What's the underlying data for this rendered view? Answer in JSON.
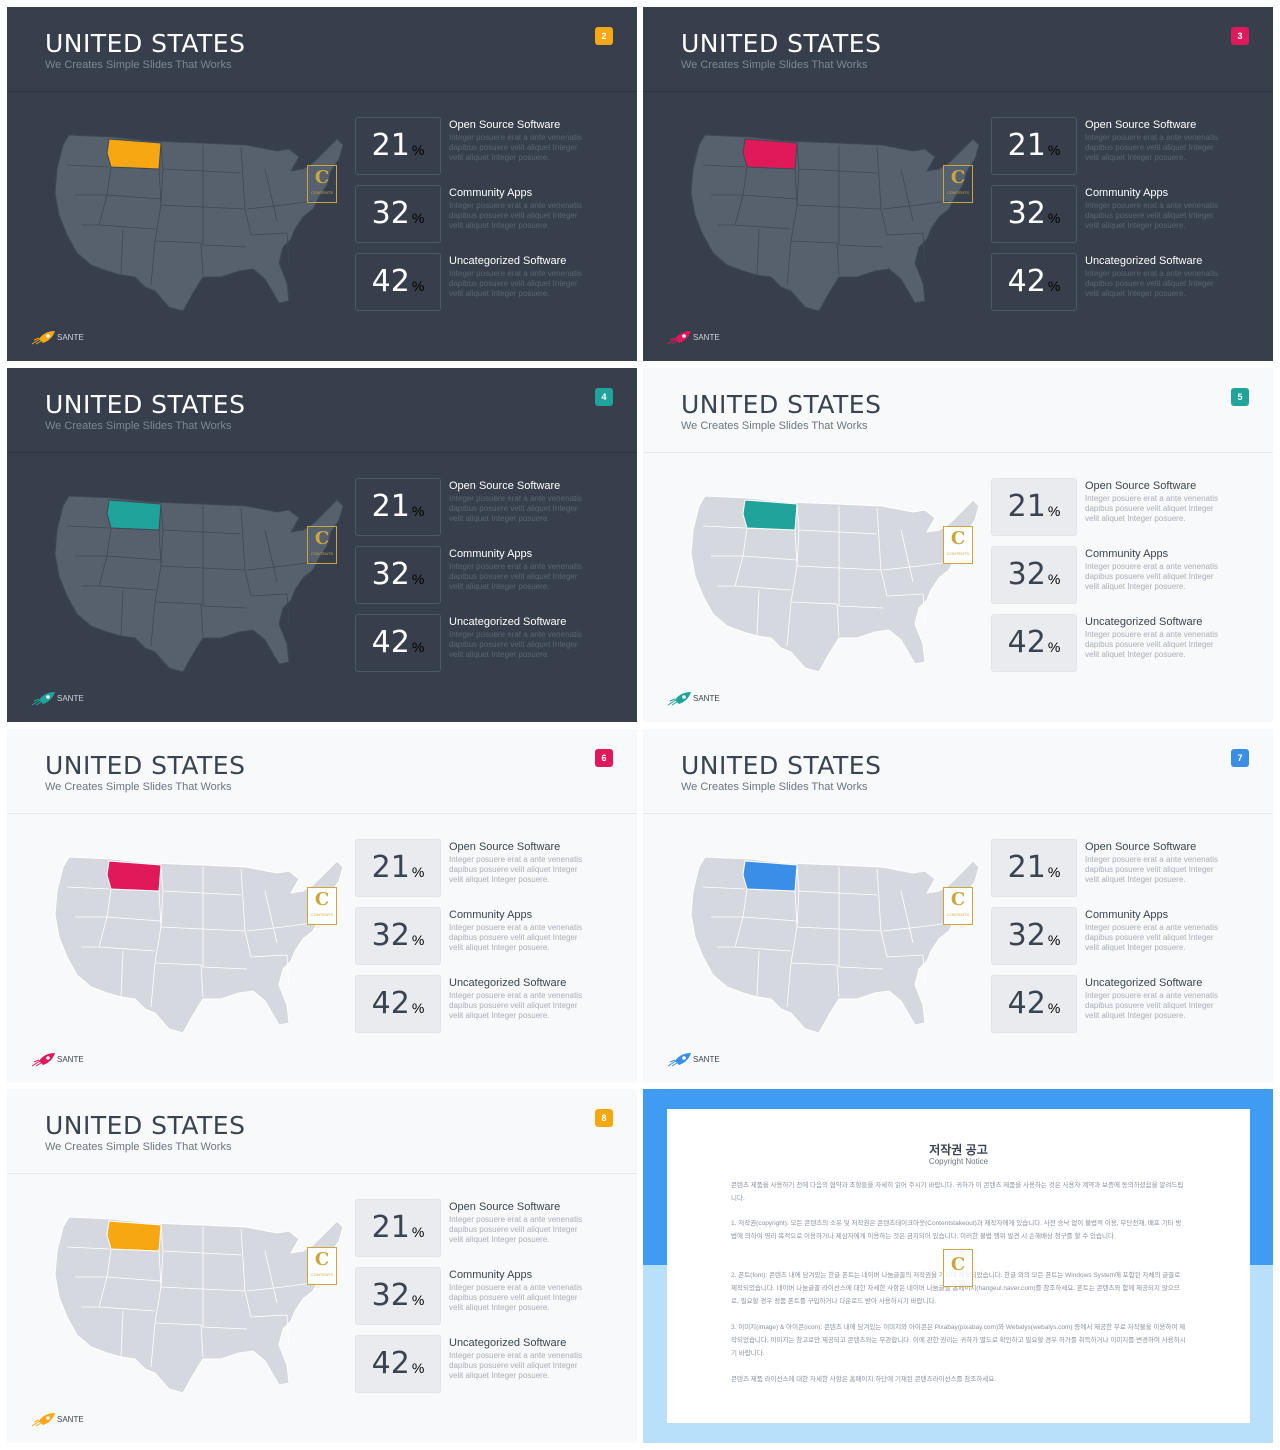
{
  "slide_template": {
    "title": "UNITED STATES",
    "subtitle": "We Creates Simple Slides That Works",
    "stats": [
      {
        "value": "21",
        "unit": "%",
        "label": "Open Source Software",
        "desc": "Integer posuere erat a ante venenatis dapibus posuere velit aliquet Integer velit aliquet Integer posuere."
      },
      {
        "value": "32",
        "unit": "%",
        "label": "Community Apps",
        "desc": "Integer posuere erat a ante venenatis dapibus posuere velit aliquet Integer velit aliquet Integer posuere."
      },
      {
        "value": "42",
        "unit": "%",
        "label": "Uncategorized Software",
        "desc": "Integer posuere erat a ante venenatis dapibus posuere velit aliquet Integer velit aliquet Integer posuere."
      }
    ],
    "brand": "SANTE",
    "seal_letter": "C",
    "seal_text": "CONTENTS"
  },
  "slides": [
    {
      "number": "2",
      "theme": "dark",
      "accent": "#f7a712",
      "highlighted_state": "Montana"
    },
    {
      "number": "3",
      "theme": "dark",
      "accent": "#e0195a",
      "highlighted_state": "Montana"
    },
    {
      "number": "4",
      "theme": "dark",
      "accent": "#1fa39a",
      "highlighted_state": "Montana"
    },
    {
      "number": "5",
      "theme": "light",
      "accent": "#1fa39a",
      "highlighted_state": "Montana"
    },
    {
      "number": "6",
      "theme": "light",
      "accent": "#e0195a",
      "highlighted_state": "Montana"
    },
    {
      "number": "7",
      "theme": "light",
      "accent": "#3a8ee6",
      "highlighted_state": "Montana"
    },
    {
      "number": "8",
      "theme": "light",
      "accent": "#f7a712",
      "highlighted_state": "Montana"
    }
  ],
  "copyright": {
    "title": "저작권 공고",
    "subtitle": "Copyright Notice",
    "paragraphs": [
      "콘텐츠 제품을 사용하기 전에 다음의 협약과 조항들을 자세히 읽어 주시기 바랍니다. 귀하가 이 콘텐츠 제품을 사용하는 것은 사용자 계약과 보증에 동의하셨음을 알려드립니다.",
      "1. 저작권(copyright): 모든 콘텐츠의 소유 및 저작권은 콘텐츠테이크아웃(Contentstakeout)과 제작자에게 있습니다. 사전 승낙 없이 불법적 이용, 무단전재, 배포 기타 방법에 의하여 영리 목적으로 이용하거나 제삼자에게 이용하는 것은 금지되어 있습니다. 이러한 불법 행위 발견 시 손해배상 청구를 할 수 있습니다.",
      "2. 폰트(font): 콘텐츠 내에 담겨있는 한글 폰트는 네이버 나눔글꼴의 저작권을 가지며 제작되었습니다. 한글 외의 모든 폰트는 Windows System에 포함된 자체의 글꼴로 제작되었습니다. 네이버 나눔글꼴 라이선스에 대한 자세한 사항은 네이버 나눔글꼴 홈페이지(hangeul.naver.com)를 참조하세요. 폰트는 콘텐츠와 함께 제공되지 않으므로, 필요할 경우 정품 폰트를 구입하거나 다운로드 받아 사용하시기 바랍니다.",
      "3. 이미지(image) & 아이콘(icon): 콘텐츠 내에 담겨있는 이미지와 아이콘은 Pixabay(pixabay.com)와 Webalys(webalys.com) 등에서 제공한 무료 저작물을 이용하여 제작되었습니다. 이미지는 참고로만 제공되고 콘텐츠와는 무관합니다. 이에 관한 권리는 귀하가 별도로 확인하고 필요할 경우 허가를 취득하거나 이미지를 변경하여 사용하시기 바랍니다.",
      "콘텐츠 제품 라이선스에 대한 자세한 사항은 홈페이지 하단에 기재된 콘텐츠라이선스를 참조하세요."
    ]
  }
}
